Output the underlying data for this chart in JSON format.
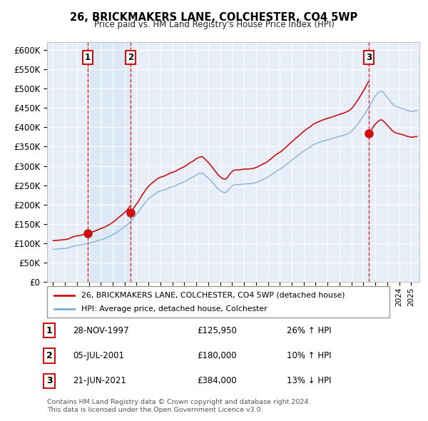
{
  "title": "26, BRICKMAKERS LANE, COLCHESTER, CO4 5WP",
  "subtitle": "Price paid vs. HM Land Registry's House Price Index (HPI)",
  "background_color": "#ffffff",
  "plot_bg_color": "#e8eef8",
  "grid_color": "#ffffff",
  "hpi_color": "#7aaed6",
  "price_color": "#cc1111",
  "shade_color": "#dce8f5",
  "purchases": [
    {
      "date_num": 1997.91,
      "price": 125950,
      "label": "1",
      "pct": "26% ↑ HPI",
      "date_str": "28-NOV-1997"
    },
    {
      "date_num": 2001.5,
      "price": 180000,
      "label": "2",
      "pct": "10% ↑ HPI",
      "date_str": "05-JUL-2001"
    },
    {
      "date_num": 2021.47,
      "price": 384000,
      "label": "3",
      "pct": "13% ↓ HPI",
      "date_str": "21-JUN-2021"
    }
  ],
  "legend_price_label": "26, BRICKMAKERS LANE, COLCHESTER, CO4 5WP (detached house)",
  "legend_hpi_label": "HPI: Average price, detached house, Colchester",
  "footer1": "Contains HM Land Registry data © Crown copyright and database right 2024.",
  "footer2": "This data is licensed under the Open Government Licence v3.0.",
  "ylim": [
    0,
    620000
  ],
  "xlim": [
    1994.5,
    2025.7
  ]
}
